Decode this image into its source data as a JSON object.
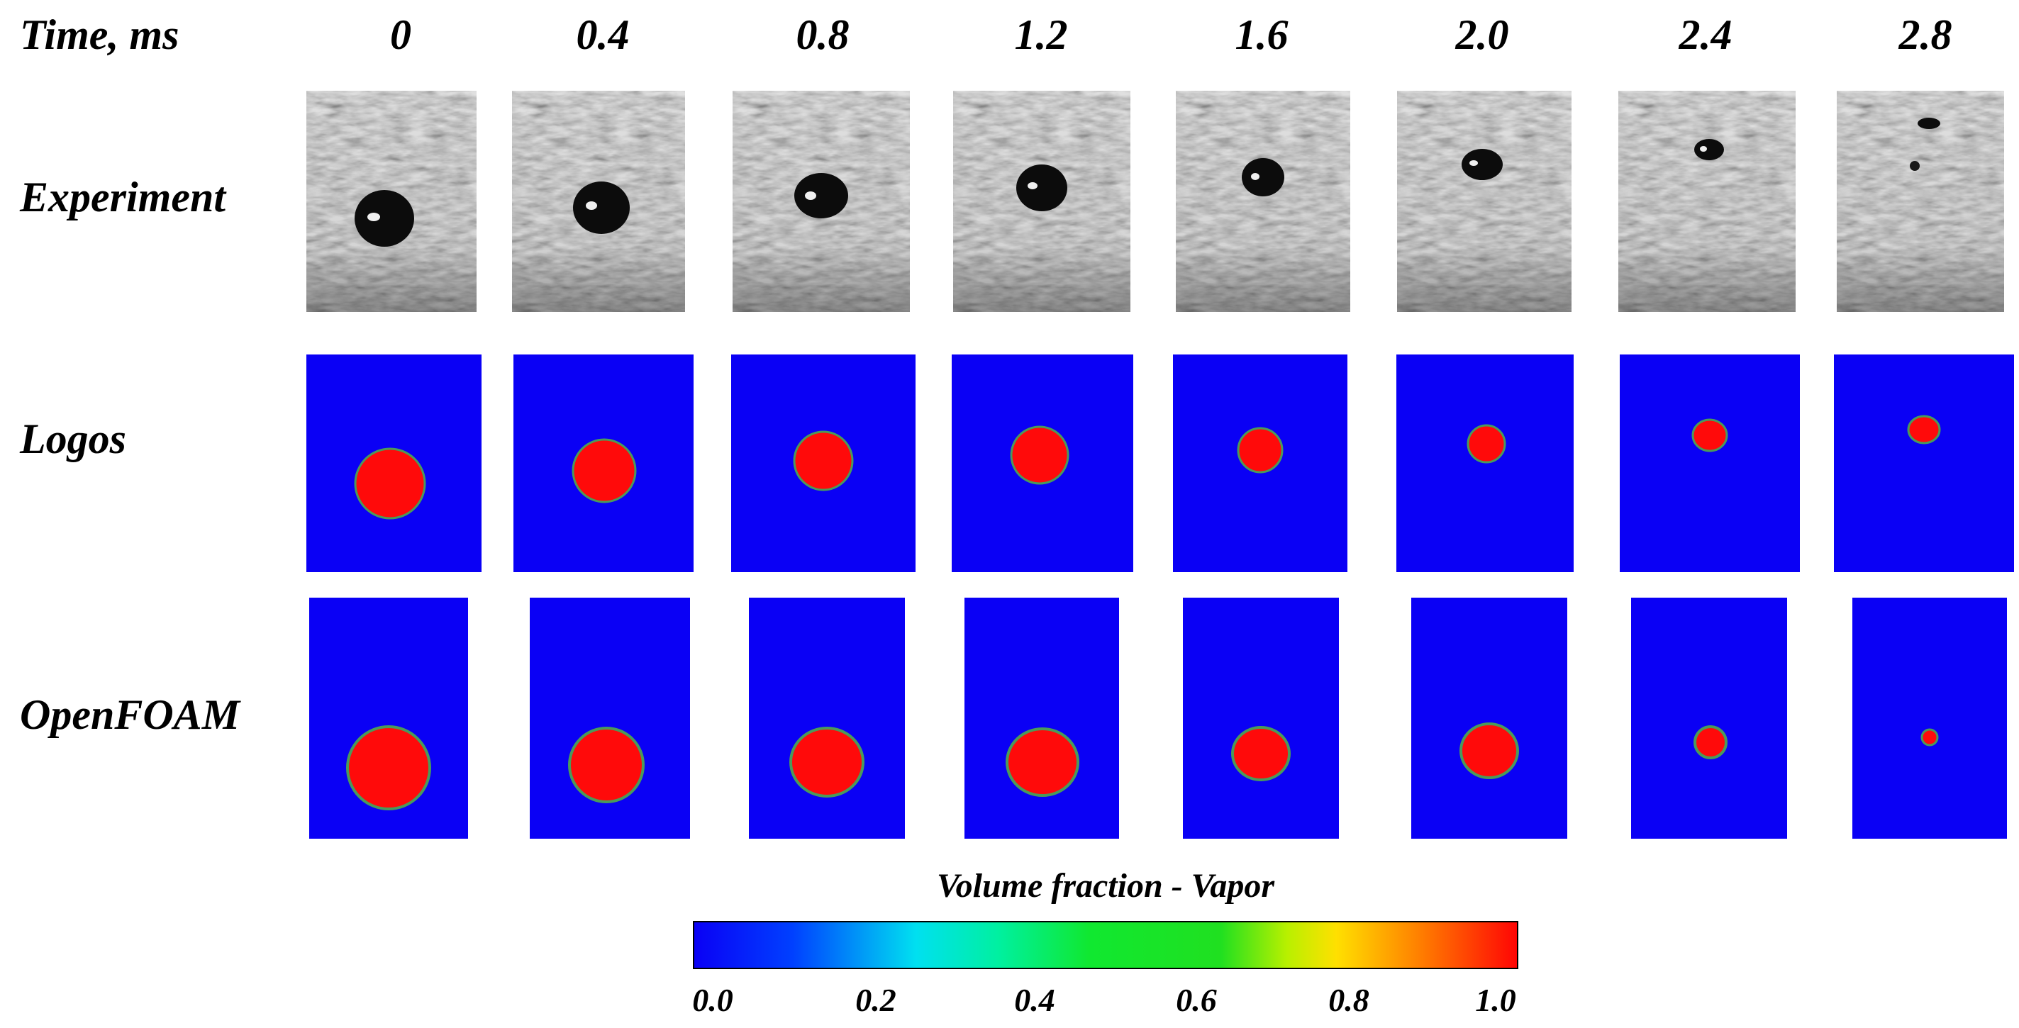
{
  "header": {
    "time_label": "Time, ms"
  },
  "times": [
    "0",
    "0.4",
    "0.8",
    "1.2",
    "1.6",
    "2.0",
    "2.4",
    "2.8"
  ],
  "rows": [
    {
      "label": "Experiment"
    },
    {
      "label": "Logos"
    },
    {
      "label": "OpenFOAM"
    }
  ],
  "colorbar": {
    "title": "Volume fraction - Vapor",
    "ticks": [
      "0.0",
      "0.2",
      "0.4",
      "0.6",
      "0.8",
      "1.0"
    ]
  },
  "colors": {
    "liquid": "#0a00f5",
    "vapor": "#ff0a0a",
    "interface": "#4a9a5a",
    "experiment_bg": "#a8a8a8",
    "bubble": "#0c0c0c"
  }
}
